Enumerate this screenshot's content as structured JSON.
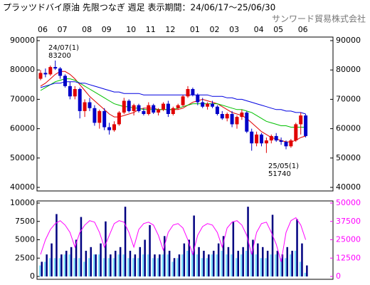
{
  "chart_data": [
    {
      "type": "candlestick",
      "title": "プラッツドバイ原油 先限つなぎ 週足 表示期間：24/06/17～25/06/30",
      "source": "サンワード貿易株式会社",
      "annotations": [
        "24/07(1)",
        "83200",
        "25/05(1)",
        "51740"
      ],
      "categories": [
        "06",
        null,
        null,
        null,
        "07",
        null,
        null,
        null,
        null,
        "08",
        null,
        null,
        null,
        "09",
        null,
        null,
        null,
        null,
        "10",
        null,
        null,
        null,
        "11",
        null,
        null,
        null,
        "12",
        null,
        null,
        null,
        null,
        "01",
        null,
        null,
        null,
        "02",
        null,
        null,
        null,
        "03",
        null,
        null,
        null,
        null,
        "04",
        null,
        null,
        null,
        "05",
        null,
        null,
        null,
        null,
        "06",
        null
      ],
      "open": [
        77000,
        79000,
        78500,
        81000,
        80500,
        78000,
        74500,
        71000,
        73500,
        66000,
        69000,
        67000,
        62000,
        66000,
        60500,
        59500,
        61500,
        65500,
        69500,
        66000,
        68000,
        66000,
        65000,
        68000,
        65500,
        66500,
        68500,
        65000,
        67000,
        68000,
        71000,
        73500,
        71500,
        69000,
        67500,
        68500,
        67500,
        65000,
        63500,
        65000,
        61500,
        64000,
        65500,
        59000,
        55000,
        58000,
        55000,
        56000,
        57500,
        56000,
        55500,
        54000,
        56000,
        61500,
        64500
      ],
      "high": [
        80000,
        80500,
        81500,
        83200,
        81000,
        78500,
        76000,
        74500,
        74000,
        70000,
        70500,
        68000,
        66500,
        67000,
        62000,
        62500,
        66000,
        70500,
        70000,
        68500,
        68500,
        67000,
        69000,
        68500,
        67000,
        69000,
        69500,
        67500,
        68500,
        71500,
        74500,
        74000,
        72000,
        70500,
        69000,
        69500,
        68000,
        66000,
        65500,
        66000,
        64500,
        66500,
        66000,
        60000,
        59000,
        58500,
        57000,
        58000,
        58500,
        57000,
        56000,
        56500,
        62000,
        65500,
        65000
      ],
      "low": [
        76500,
        77500,
        78000,
        80000,
        77000,
        74000,
        70000,
        70000,
        63500,
        64000,
        66000,
        61000,
        60000,
        59500,
        58000,
        59000,
        61000,
        65000,
        65500,
        64500,
        65500,
        64500,
        64500,
        65000,
        64500,
        66000,
        64000,
        64500,
        66500,
        67500,
        70500,
        71000,
        68000,
        67000,
        66500,
        67000,
        64500,
        63000,
        62500,
        60500,
        60000,
        63000,
        58500,
        52500,
        54000,
        54000,
        51740,
        55000,
        55500,
        54500,
        53000,
        53500,
        55500,
        58000,
        57000
      ],
      "close": [
        79000,
        78500,
        81000,
        80500,
        78000,
        74500,
        71000,
        73500,
        66000,
        69000,
        67000,
        62000,
        66000,
        60500,
        59500,
        61500,
        65500,
        69500,
        66000,
        68000,
        66000,
        65000,
        68000,
        65500,
        66500,
        68500,
        65000,
        67000,
        68000,
        71000,
        73500,
        71500,
        69000,
        67500,
        68500,
        67500,
        65000,
        63500,
        65000,
        61500,
        64000,
        65500,
        59000,
        55000,
        58000,
        55000,
        56000,
        57500,
        56000,
        55500,
        54000,
        56000,
        61500,
        64500,
        57500
      ],
      "up_color": "#e00000",
      "down_color": "#0000c8",
      "series": [
        {
          "color": "#e00000",
          "values": [
            74500,
            75500,
            77000,
            78500,
            79500,
            79500,
            78500,
            77000,
            75000,
            73000,
            71000,
            69500,
            68000,
            66500,
            65000,
            64000,
            64000,
            64500,
            65000,
            65500,
            66500,
            67000,
            67000,
            67000,
            66500,
            66500,
            66500,
            66500,
            66500,
            67000,
            68000,
            69000,
            69500,
            70000,
            69500,
            69000,
            68500,
            67500,
            66500,
            65500,
            65000,
            64500,
            63500,
            62000,
            60500,
            59000,
            58000,
            57000,
            56500,
            56000,
            55500,
            55500,
            56000,
            57000,
            57500
          ]
        },
        {
          "color": "#00c000",
          "values": [
            73000,
            74000,
            75000,
            76000,
            76500,
            77000,
            77000,
            76500,
            75500,
            74500,
            73500,
            72500,
            71500,
            70500,
            69500,
            68500,
            68000,
            67500,
            67500,
            67000,
            67000,
            66500,
            66500,
            66500,
            66500,
            66500,
            66500,
            66500,
            67000,
            67500,
            68000,
            68500,
            68500,
            68500,
            68500,
            68500,
            68500,
            68000,
            67500,
            67000,
            66500,
            66500,
            66000,
            65500,
            64500,
            63500,
            62500,
            62000,
            61500,
            61000,
            61000,
            60500,
            60500,
            60500,
            60500
          ]
        },
        {
          "color": "#0000e0",
          "values": [
            74000,
            74500,
            75000,
            75500,
            75500,
            76000,
            76000,
            76000,
            75500,
            75500,
            75000,
            74500,
            74000,
            73500,
            73000,
            72500,
            72500,
            72000,
            72000,
            72000,
            72000,
            71500,
            71500,
            71500,
            71500,
            71500,
            71500,
            71500,
            71500,
            71500,
            71500,
            71500,
            71500,
            71500,
            71500,
            71000,
            71000,
            71000,
            70500,
            70500,
            70000,
            70000,
            69500,
            69000,
            68500,
            68000,
            67500,
            67000,
            66500,
            66500,
            66000,
            66000,
            65500,
            65500,
            65000
          ]
        }
      ],
      "ylim": [
        40000,
        90000
      ],
      "yticks": [
        40000,
        50000,
        60000,
        70000,
        80000,
        90000
      ]
    },
    {
      "type": "bar",
      "series": [
        {
          "color": "#80e0ff",
          "values": [
            1500,
            2000,
            2500,
            2500,
            2500,
            3000,
            3000,
            2500,
            2500,
            2000,
            2500,
            3000,
            3000,
            2500,
            2500,
            2500,
            3000,
            3000,
            2500,
            2500,
            2500,
            3000,
            3000,
            2500,
            2500,
            3000,
            3000,
            2000,
            2500,
            3000,
            3500,
            3500,
            3000,
            2500,
            2500,
            3000,
            3000,
            3500,
            3000,
            3000,
            2500,
            3000,
            3500,
            3500,
            3000,
            2500,
            2500,
            3000,
            3000,
            2500,
            2500,
            3000,
            3500,
            2000,
            500
          ]
        },
        {
          "color": "#000080",
          "values": [
            2000,
            3000,
            4500,
            8500,
            3000,
            3500,
            4000,
            5000,
            8100,
            3500,
            4000,
            3000,
            4500,
            7500,
            3000,
            3500,
            4000,
            9500,
            3500,
            3000,
            4000,
            5000,
            7000,
            3000,
            3000,
            5500,
            3500,
            2500,
            3000,
            4500,
            5000,
            8300,
            4000,
            3500,
            3000,
            3500,
            4500,
            5500,
            4000,
            7500,
            3500,
            4000,
            9500,
            5000,
            4500,
            4000,
            3500,
            8400,
            3500,
            3000,
            4000,
            3500,
            7800,
            4500,
            1500
          ]
        },
        {
          "color": "#ff00ff",
          "axis": "y2",
          "values": [
            15000,
            25000,
            32000,
            36000,
            38000,
            35000,
            30000,
            20000,
            30000,
            35000,
            38000,
            37000,
            30000,
            20000,
            28000,
            36000,
            38000,
            37000,
            30000,
            20000,
            32000,
            36000,
            37000,
            35000,
            28000,
            18000,
            30000,
            35000,
            36000,
            33000,
            25000,
            15000,
            28000,
            34000,
            36000,
            35000,
            30000,
            20000,
            33000,
            37000,
            38000,
            35000,
            28000,
            15000,
            30000,
            36000,
            37000,
            30000,
            22000,
            10000,
            30000,
            38000,
            40000,
            35000,
            25000
          ]
        }
      ],
      "ylim": [
        0,
        10000
      ],
      "yticks": [
        0,
        2500,
        5000,
        7500,
        10000
      ],
      "y2lim": [
        0,
        50000
      ],
      "y2ticks": [
        0,
        12500,
        25000,
        37500,
        50000
      ],
      "y2color": "#ff00ff"
    }
  ]
}
